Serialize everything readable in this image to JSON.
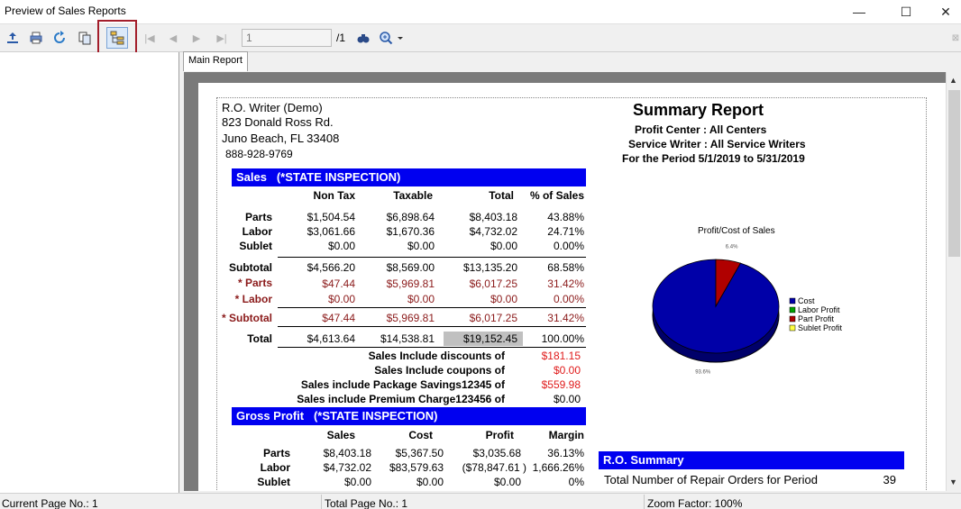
{
  "window": {
    "title": "Preview of Sales Reports",
    "minimize_glyph": "—",
    "maximize_glyph": "☐",
    "close_glyph": "✕"
  },
  "toolbar": {
    "page_input_value": "1",
    "page_total": "/1",
    "icons": [
      "export-icon",
      "print-icon",
      "refresh-icon",
      "copy-icon",
      "group-tree-icon",
      "first-page-icon",
      "prev-page-icon",
      "next-page-icon",
      "last-page-icon",
      "find-icon",
      "zoom-icon"
    ]
  },
  "tabs": {
    "main": "Main Report"
  },
  "report": {
    "company": [
      "R.O. Writer (Demo)",
      "823 Donald Ross Rd.",
      "Juno Beach, FL 33408",
      "888-928-9769"
    ],
    "title": "Summary Report",
    "profit_center": "Profit Center : All Centers",
    "service_writer": "Service Writer : All Service Writers",
    "period": "For the Period 5/1/2019 to 5/31/2019",
    "sales_header": "Sales",
    "sales_sub": "(*STATE INSPECTION)",
    "sales_cols": [
      "Non Tax",
      "Taxable",
      "Total",
      "% of Sales"
    ],
    "sales_rows": [
      {
        "label": "Parts",
        "vals": [
          "$1,504.54",
          "$6,898.64",
          "$8,403.18",
          "43.88%"
        ]
      },
      {
        "label": "Labor",
        "vals": [
          "$3,061.66",
          "$1,670.36",
          "$4,732.02",
          "24.71%"
        ]
      },
      {
        "label": "Sublet",
        "vals": [
          "$0.00",
          "$0.00",
          "$0.00",
          "0.00%"
        ]
      },
      {
        "label": "Subtotal",
        "vals": [
          "$4,566.20",
          "$8,569.00",
          "$13,135.20",
          "68.58%"
        ]
      },
      {
        "label": "* Parts",
        "vals": [
          "$47.44",
          "$5,969.81",
          "$6,017.25",
          "31.42%"
        ]
      },
      {
        "label": "* Labor",
        "vals": [
          "$0.00",
          "$0.00",
          "$0.00",
          "0.00%"
        ]
      },
      {
        "label": "* Subtotal",
        "vals": [
          "$47.44",
          "$5,969.81",
          "$6,017.25",
          "31.42%"
        ]
      },
      {
        "label": "Total",
        "vals": [
          "$4,613.64",
          "$14,538.81",
          "$19,152.45",
          "100.00%"
        ]
      }
    ],
    "extras": [
      {
        "label": "Sales Include discounts of",
        "value": "$181.15"
      },
      {
        "label": "Sales Include coupons of",
        "value": "$0.00"
      },
      {
        "label": "Sales include Package Savings12345 of",
        "value": "$559.98"
      },
      {
        "label": "Sales include Premium Charge123456 of",
        "value": "$0.00"
      }
    ],
    "gp_header": "Gross Profit",
    "gp_sub": "(*STATE INSPECTION)",
    "gp_cols": [
      "Sales",
      "Cost",
      "Profit",
      "Margin"
    ],
    "gp_rows": [
      {
        "label": "Parts",
        "vals": [
          "$8,403.18",
          "$5,367.50",
          "$3,035.68",
          "36.13%"
        ]
      },
      {
        "label": "Labor",
        "vals": [
          "$4,732.02",
          "$83,579.63",
          "($78,847.61 )",
          "1,666.26%"
        ]
      },
      {
        "label": "Sublet",
        "vals": [
          "$0.00",
          "$0.00",
          "$0.00",
          "0%"
        ]
      }
    ],
    "ro_header": "R.O. Summary",
    "ro_rows": [
      {
        "label": "Total Number of Repair Orders for Period",
        "value": "39"
      }
    ]
  },
  "chart_data": {
    "type": "pie",
    "title": "Profit/Cost of Sales",
    "slices": [
      {
        "name": "Cost",
        "value": 93.6,
        "color": "#0000a8",
        "label": "93.6%"
      },
      {
        "name": "Labor Profit",
        "value": 0,
        "color": "#00a000",
        "label": ""
      },
      {
        "name": "Part Profit",
        "value": 6.4,
        "color": "#b00000",
        "label": "6.4%"
      },
      {
        "name": "Sublet Profit",
        "value": 0,
        "color": "#ffff40",
        "label": ""
      }
    ],
    "legend_position": "right"
  },
  "status": {
    "current_page": "Current Page No.: 1",
    "total_page": "Total Page No.: 1",
    "zoom": "Zoom Factor: 100%"
  }
}
